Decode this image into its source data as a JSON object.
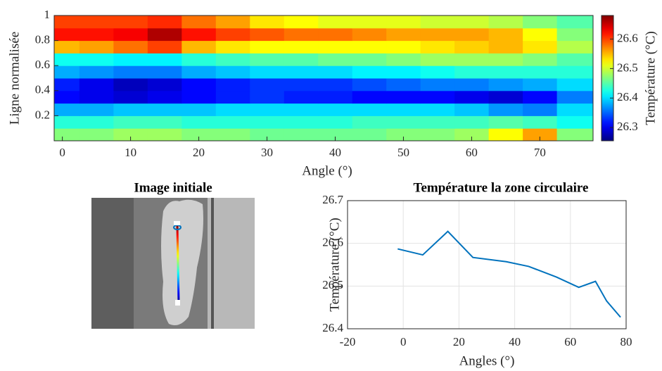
{
  "chart_data": [
    {
      "type": "heatmap",
      "xlabel": "Angle (°)",
      "ylabel": "Ligne normalisée",
      "x": [
        0,
        5,
        10,
        15,
        20,
        25,
        30,
        35,
        40,
        45,
        50,
        55,
        60,
        65,
        70,
        75
      ],
      "y": [
        0.05,
        0.15,
        0.25,
        0.35,
        0.45,
        0.55,
        0.65,
        0.75,
        0.85,
        0.95
      ],
      "z": [
        [
          26.47,
          26.47,
          26.48,
          26.48,
          26.47,
          26.47,
          26.46,
          26.46,
          26.46,
          26.46,
          26.47,
          26.47,
          26.48,
          26.52,
          26.56,
          26.47
        ],
        [
          26.43,
          26.43,
          26.44,
          26.44,
          26.43,
          26.43,
          26.43,
          26.43,
          26.43,
          26.44,
          26.44,
          26.44,
          26.44,
          26.45,
          26.44,
          26.42
        ],
        [
          26.38,
          26.38,
          26.39,
          26.39,
          26.39,
          26.4,
          26.4,
          26.4,
          26.4,
          26.4,
          26.4,
          26.4,
          26.39,
          26.37,
          26.36,
          26.4
        ],
        [
          26.31,
          26.3,
          26.29,
          26.3,
          26.31,
          26.32,
          26.33,
          26.32,
          26.32,
          26.31,
          26.31,
          26.31,
          26.3,
          26.29,
          26.31,
          26.36
        ],
        [
          26.32,
          26.3,
          26.28,
          26.29,
          26.31,
          26.32,
          26.33,
          26.33,
          26.33,
          26.34,
          26.35,
          26.36,
          26.36,
          26.37,
          26.38,
          26.4
        ],
        [
          26.38,
          26.37,
          26.36,
          26.36,
          26.38,
          26.39,
          26.4,
          26.4,
          26.4,
          26.41,
          26.41,
          26.42,
          26.43,
          26.43,
          26.43,
          26.43
        ],
        [
          26.42,
          26.42,
          26.41,
          26.41,
          26.43,
          26.44,
          26.45,
          26.45,
          26.46,
          26.46,
          26.47,
          26.48,
          26.48,
          26.48,
          26.47,
          26.45
        ],
        [
          26.55,
          26.56,
          26.58,
          26.6,
          26.55,
          26.53,
          26.52,
          26.52,
          26.52,
          26.52,
          26.52,
          26.53,
          26.54,
          26.55,
          26.53,
          26.49
        ],
        [
          26.62,
          26.62,
          26.63,
          26.66,
          26.62,
          26.6,
          26.59,
          26.58,
          26.58,
          26.57,
          26.56,
          26.56,
          26.56,
          26.55,
          26.52,
          26.47
        ],
        [
          26.6,
          26.6,
          26.6,
          26.61,
          26.58,
          26.56,
          26.53,
          26.52,
          26.51,
          26.51,
          26.51,
          26.5,
          26.5,
          26.49,
          26.47,
          26.45
        ]
      ],
      "xlim": [
        -1.2,
        77.8
      ],
      "xticks": [
        0,
        10,
        20,
        30,
        40,
        50,
        60,
        70
      ],
      "ylim": [
        0,
        1
      ],
      "yticks": [
        0.2,
        0.4,
        0.6,
        0.8,
        1
      ],
      "colormap": "jet",
      "clim": [
        26.255,
        26.68
      ],
      "cticks": [
        26.3,
        26.4,
        26.5,
        26.6
      ],
      "clabel": "Température (°C)"
    },
    {
      "type": "image",
      "title": "Image initiale"
    },
    {
      "type": "line",
      "title": "Température la zone circulaire",
      "xlabel": "Angles (°)",
      "ylabel": "Température (°C)",
      "x": [
        -2,
        7,
        16,
        25,
        37,
        45,
        55,
        63,
        69,
        73,
        78
      ],
      "series": [
        {
          "color": "#0072bd",
          "values": [
            26.587,
            26.573,
            26.628,
            26.567,
            26.557,
            26.546,
            26.521,
            26.497,
            26.511,
            26.465,
            26.427
          ]
        }
      ],
      "xlim": [
        -20,
        80
      ],
      "xticks": [
        -20,
        0,
        20,
        40,
        60,
        80
      ],
      "ylim": [
        26.4,
        26.7
      ],
      "yticks": [
        26.4,
        26.5,
        26.6,
        26.7
      ],
      "grid": true
    }
  ]
}
